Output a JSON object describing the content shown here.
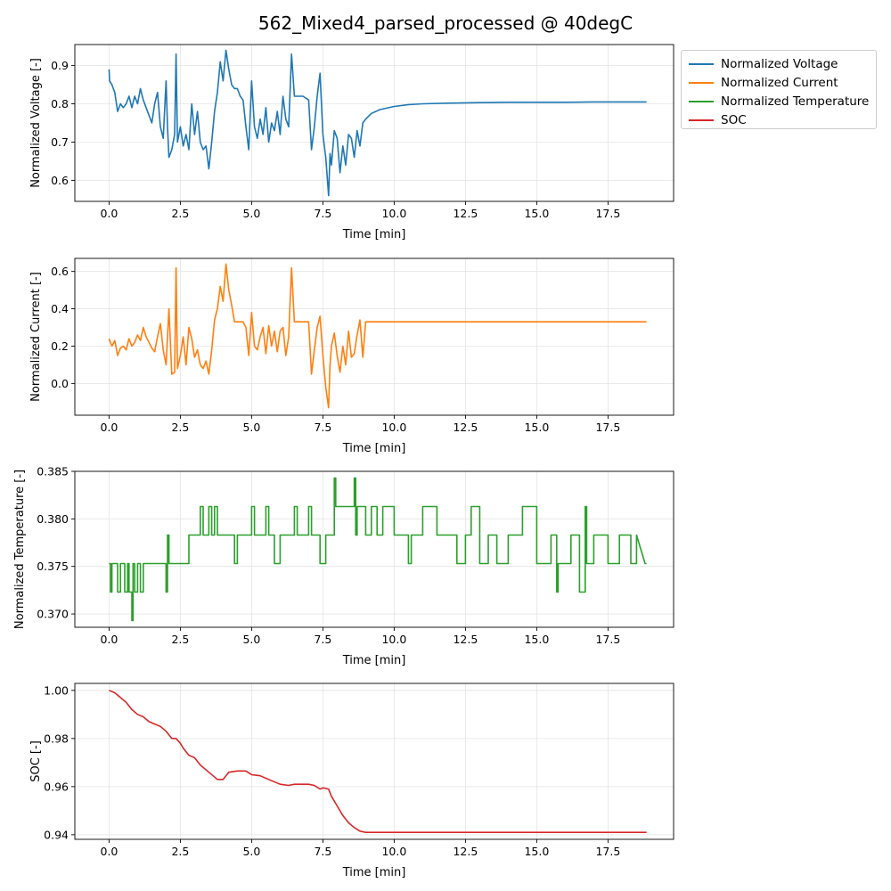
{
  "figure": {
    "title": "562_Mixed4_parsed_processed @ 40degC"
  },
  "chart_data": [
    {
      "type": "line",
      "xlabel": "Time [min]",
      "ylabel": "Normalized Voltage [-]",
      "xlim": [
        -1.2,
        19.8
      ],
      "ylim": [
        0.545,
        0.955
      ],
      "xticks": [
        0.0,
        2.5,
        5.0,
        7.5,
        10.0,
        12.5,
        15.0,
        17.5
      ],
      "xtick_labels": [
        "0.0",
        "2.5",
        "5.0",
        "7.5",
        "10.0",
        "12.5",
        "15.0",
        "17.5"
      ],
      "yticks": [
        0.6,
        0.7,
        0.8,
        0.9
      ],
      "ytick_labels": [
        "0.6",
        "0.7",
        "0.8",
        "0.9"
      ],
      "grid": true,
      "legend": "outside-right",
      "series": [
        {
          "name": "Normalized Voltage",
          "color": "#1f77b4",
          "x": [
            0,
            0.02,
            0.1,
            0.2,
            0.3,
            0.4,
            0.5,
            0.6,
            0.7,
            0.8,
            0.9,
            1.0,
            1.1,
            1.2,
            1.3,
            1.4,
            1.5,
            1.6,
            1.7,
            1.8,
            1.9,
            2.0,
            2.05,
            2.1,
            2.2,
            2.3,
            2.35,
            2.4,
            2.5,
            2.6,
            2.7,
            2.8,
            2.9,
            3.0,
            3.1,
            3.2,
            3.3,
            3.4,
            3.5,
            3.6,
            3.7,
            3.8,
            3.9,
            4.0,
            4.1,
            4.2,
            4.3,
            4.4,
            4.5,
            4.6,
            4.7,
            4.8,
            4.9,
            5.0,
            5.1,
            5.2,
            5.3,
            5.4,
            5.5,
            5.6,
            5.7,
            5.8,
            5.9,
            6.0,
            6.1,
            6.2,
            6.3,
            6.4,
            6.5,
            6.6,
            6.8,
            7.0,
            7.1,
            7.2,
            7.3,
            7.4,
            7.5,
            7.6,
            7.7,
            7.75,
            7.8,
            7.9,
            8.0,
            8.1,
            8.2,
            8.3,
            8.4,
            8.5,
            8.6,
            8.7,
            8.8,
            8.9,
            9.0,
            9.2,
            9.5,
            10.0,
            10.5,
            11.0,
            12.0,
            13.0,
            14.0,
            15.0,
            16.0,
            17.0,
            18.0,
            18.85
          ],
          "y": [
            0.89,
            0.86,
            0.85,
            0.83,
            0.78,
            0.8,
            0.79,
            0.8,
            0.82,
            0.79,
            0.82,
            0.8,
            0.84,
            0.81,
            0.79,
            0.77,
            0.75,
            0.8,
            0.83,
            0.74,
            0.71,
            0.86,
            0.74,
            0.66,
            0.68,
            0.72,
            0.93,
            0.7,
            0.74,
            0.69,
            0.72,
            0.68,
            0.8,
            0.72,
            0.78,
            0.7,
            0.68,
            0.69,
            0.63,
            0.7,
            0.78,
            0.83,
            0.91,
            0.86,
            0.94,
            0.89,
            0.85,
            0.84,
            0.84,
            0.82,
            0.81,
            0.74,
            0.68,
            0.86,
            0.74,
            0.71,
            0.76,
            0.72,
            0.79,
            0.7,
            0.75,
            0.73,
            0.78,
            0.72,
            0.82,
            0.76,
            0.74,
            0.93,
            0.82,
            0.82,
            0.82,
            0.81,
            0.68,
            0.74,
            0.82,
            0.88,
            0.72,
            0.66,
            0.56,
            0.67,
            0.64,
            0.73,
            0.71,
            0.62,
            0.69,
            0.64,
            0.72,
            0.71,
            0.66,
            0.73,
            0.69,
            0.75,
            0.76,
            0.775,
            0.785,
            0.793,
            0.798,
            0.8,
            0.802,
            0.803,
            0.804,
            0.804,
            0.804,
            0.805,
            0.805,
            0.805
          ]
        }
      ]
    },
    {
      "type": "line",
      "xlabel": "Time [min]",
      "ylabel": "Normalized Current [-]",
      "xlim": [
        -1.2,
        19.8
      ],
      "ylim": [
        -0.17,
        0.67
      ],
      "xticks": [
        0.0,
        2.5,
        5.0,
        7.5,
        10.0,
        12.5,
        15.0,
        17.5
      ],
      "xtick_labels": [
        "0.0",
        "2.5",
        "5.0",
        "7.5",
        "10.0",
        "12.5",
        "15.0",
        "17.5"
      ],
      "yticks": [
        0.0,
        0.2,
        0.4,
        0.6
      ],
      "ytick_labels": [
        "0.0",
        "0.2",
        "0.4",
        "0.6"
      ],
      "grid": true,
      "series": [
        {
          "name": "Normalized Current",
          "color": "#ff7f0e",
          "x": [
            0,
            0.1,
            0.2,
            0.3,
            0.4,
            0.5,
            0.6,
            0.7,
            0.8,
            0.9,
            1.0,
            1.1,
            1.2,
            1.3,
            1.4,
            1.5,
            1.6,
            1.7,
            1.8,
            1.9,
            2.0,
            2.1,
            2.2,
            2.3,
            2.35,
            2.4,
            2.5,
            2.6,
            2.7,
            2.8,
            2.9,
            3.0,
            3.1,
            3.2,
            3.3,
            3.4,
            3.5,
            3.6,
            3.7,
            3.8,
            3.9,
            4.0,
            4.1,
            4.2,
            4.3,
            4.4,
            4.5,
            4.6,
            4.7,
            4.8,
            4.9,
            5.0,
            5.1,
            5.2,
            5.3,
            5.4,
            5.5,
            5.6,
            5.7,
            5.8,
            5.9,
            6.0,
            6.1,
            6.2,
            6.3,
            6.4,
            6.5,
            6.6,
            6.8,
            7.0,
            7.1,
            7.2,
            7.3,
            7.4,
            7.5,
            7.6,
            7.7,
            7.75,
            7.8,
            7.9,
            8.0,
            8.1,
            8.2,
            8.3,
            8.4,
            8.5,
            8.6,
            8.7,
            8.8,
            8.9,
            9.0,
            9.5,
            10.0,
            12.0,
            14.0,
            16.0,
            18.0,
            18.85
          ],
          "y": [
            0.24,
            0.2,
            0.23,
            0.15,
            0.19,
            0.2,
            0.18,
            0.24,
            0.2,
            0.22,
            0.26,
            0.23,
            0.3,
            0.25,
            0.22,
            0.19,
            0.17,
            0.25,
            0.32,
            0.18,
            0.1,
            0.4,
            0.05,
            0.06,
            0.62,
            0.08,
            0.15,
            0.25,
            0.1,
            0.3,
            0.24,
            0.14,
            0.18,
            0.1,
            0.08,
            0.12,
            0.05,
            0.18,
            0.34,
            0.4,
            0.52,
            0.44,
            0.64,
            0.5,
            0.42,
            0.33,
            0.33,
            0.33,
            0.33,
            0.3,
            0.15,
            0.38,
            0.2,
            0.18,
            0.25,
            0.3,
            0.16,
            0.31,
            0.2,
            0.28,
            0.17,
            0.28,
            0.3,
            0.15,
            0.25,
            0.62,
            0.33,
            0.33,
            0.33,
            0.33,
            0.05,
            0.18,
            0.3,
            0.36,
            0.15,
            -0.02,
            -0.13,
            0.1,
            0.2,
            0.27,
            0.15,
            0.06,
            0.2,
            0.1,
            0.28,
            0.14,
            0.16,
            0.26,
            0.34,
            0.14,
            0.33,
            0.33,
            0.33,
            0.33,
            0.33,
            0.33,
            0.33,
            0.33
          ]
        }
      ]
    },
    {
      "type": "line",
      "xlabel": "Time [min]",
      "ylabel": "Normalized Temperature [-]",
      "xlim": [
        -1.2,
        19.8
      ],
      "ylim": [
        0.3686,
        0.385
      ],
      "xticks": [
        0.0,
        2.5,
        5.0,
        7.5,
        10.0,
        12.5,
        15.0,
        17.5
      ],
      "xtick_labels": [
        "0.0",
        "2.5",
        "5.0",
        "7.5",
        "10.0",
        "12.5",
        "15.0",
        "17.5"
      ],
      "yticks": [
        0.37,
        0.375,
        0.38,
        0.385
      ],
      "ytick_labels": [
        "0.370",
        "0.375",
        "0.380",
        "0.385"
      ],
      "grid": true,
      "series": [
        {
          "name": "Normalized Temperature",
          "color": "#2ca02c",
          "x": [
            0,
            0.05,
            0.05,
            0.1,
            0.1,
            0.3,
            0.3,
            0.4,
            0.4,
            0.55,
            0.55,
            0.65,
            0.65,
            0.7,
            0.7,
            0.8,
            0.8,
            0.84,
            0.84,
            0.9,
            0.9,
            1.0,
            1.0,
            1.1,
            1.1,
            1.2,
            1.2,
            1.3,
            1.3,
            2.0,
            2.0,
            2.05,
            2.05,
            2.1,
            2.1,
            2.15,
            2.15,
            2.8,
            2.8,
            3.2,
            3.2,
            3.3,
            3.3,
            3.5,
            3.5,
            3.6,
            3.6,
            3.7,
            3.7,
            3.8,
            3.8,
            4.4,
            4.4,
            4.5,
            4.5,
            5.0,
            5.0,
            5.1,
            5.1,
            5.5,
            5.5,
            5.6,
            5.6,
            5.8,
            5.8,
            6.0,
            6.0,
            6.5,
            6.5,
            6.6,
            6.6,
            7.0,
            7.0,
            7.1,
            7.1,
            7.4,
            7.4,
            7.6,
            7.6,
            7.9,
            7.9,
            7.95,
            7.95,
            8.6,
            8.6,
            8.65,
            8.65,
            8.7,
            8.7,
            9.0,
            9.0,
            9.2,
            9.2,
            9.4,
            9.4,
            9.6,
            9.6,
            10.0,
            10.0,
            10.5,
            10.5,
            10.6,
            10.6,
            11.0,
            11.0,
            11.5,
            11.5,
            12.2,
            12.2,
            12.5,
            12.5,
            12.7,
            12.7,
            13.0,
            13.0,
            13.3,
            13.3,
            13.6,
            13.6,
            14.0,
            14.0,
            14.5,
            14.5,
            15.0,
            15.0,
            15.5,
            15.5,
            15.7,
            15.7,
            15.75,
            15.75,
            16.2,
            16.2,
            16.5,
            16.5,
            16.7,
            16.7,
            16.75,
            16.75,
            17.0,
            17.0,
            17.5,
            17.5,
            17.9,
            17.9,
            18.3,
            18.3,
            18.5,
            18.5,
            18.8,
            18.85
          ],
          "y": [
            0.3753,
            0.3753,
            0.3723,
            0.3723,
            0.3753,
            0.3753,
            0.3723,
            0.3723,
            0.3753,
            0.3753,
            0.3723,
            0.3723,
            0.3753,
            0.3753,
            0.3723,
            0.3723,
            0.3693,
            0.3693,
            0.3753,
            0.3753,
            0.3723,
            0.3723,
            0.3753,
            0.3753,
            0.3723,
            0.3723,
            0.3753,
            0.3753,
            0.3753,
            0.3753,
            0.3723,
            0.3723,
            0.3783,
            0.3783,
            0.3753,
            0.3753,
            0.3753,
            0.3753,
            0.3783,
            0.3783,
            0.3813,
            0.3813,
            0.3783,
            0.3783,
            0.3813,
            0.3813,
            0.3783,
            0.3783,
            0.3813,
            0.3813,
            0.3783,
            0.3783,
            0.3753,
            0.3753,
            0.3783,
            0.3783,
            0.3813,
            0.3813,
            0.3783,
            0.3783,
            0.3813,
            0.3813,
            0.3783,
            0.3783,
            0.3753,
            0.3753,
            0.3783,
            0.3783,
            0.3813,
            0.3813,
            0.3783,
            0.3783,
            0.3813,
            0.3813,
            0.3783,
            0.3783,
            0.3753,
            0.3753,
            0.3783,
            0.3783,
            0.3843,
            0.3843,
            0.3813,
            0.3813,
            0.3843,
            0.3843,
            0.3783,
            0.3783,
            0.3813,
            0.3813,
            0.3783,
            0.3783,
            0.3813,
            0.3813,
            0.3783,
            0.3783,
            0.3813,
            0.3813,
            0.3783,
            0.3783,
            0.3753,
            0.3753,
            0.3783,
            0.3783,
            0.3813,
            0.3813,
            0.3783,
            0.3783,
            0.3753,
            0.3753,
            0.3783,
            0.3783,
            0.3813,
            0.3813,
            0.3753,
            0.3753,
            0.3783,
            0.3783,
            0.3753,
            0.3753,
            0.3783,
            0.3783,
            0.3813,
            0.3813,
            0.3753,
            0.3753,
            0.3783,
            0.3783,
            0.3723,
            0.3723,
            0.3753,
            0.3753,
            0.3783,
            0.3783,
            0.3723,
            0.3723,
            0.3813,
            0.3813,
            0.3753,
            0.3753,
            0.3783,
            0.3783,
            0.3753,
            0.3753,
            0.3783,
            0.3783,
            0.3753,
            0.3753,
            0.3783,
            0.3753,
            0.3753
          ]
        }
      ]
    },
    {
      "type": "line",
      "xlabel": "Time [min]",
      "ylabel": "SOC [-]",
      "xlim": [
        -1.2,
        19.8
      ],
      "ylim": [
        0.9381,
        1.0029
      ],
      "xticks": [
        0.0,
        2.5,
        5.0,
        7.5,
        10.0,
        12.5,
        15.0,
        17.5
      ],
      "xtick_labels": [
        "0.0",
        "2.5",
        "5.0",
        "7.5",
        "10.0",
        "12.5",
        "15.0",
        "17.5"
      ],
      "yticks": [
        0.94,
        0.96,
        0.98,
        1.0
      ],
      "ytick_labels": [
        "0.94",
        "0.96",
        "0.98",
        "1.00"
      ],
      "grid": true,
      "series": [
        {
          "name": "SOC",
          "color": "#d62728",
          "x": [
            0,
            0.2,
            0.4,
            0.6,
            0.8,
            1.0,
            1.2,
            1.4,
            1.6,
            1.8,
            2.0,
            2.2,
            2.35,
            2.5,
            2.6,
            2.8,
            3.0,
            3.2,
            3.5,
            3.8,
            4.0,
            4.2,
            4.5,
            4.8,
            5.0,
            5.3,
            5.6,
            6.0,
            6.3,
            6.5,
            6.8,
            7.0,
            7.2,
            7.4,
            7.5,
            7.7,
            7.8,
            8.0,
            8.2,
            8.4,
            8.6,
            8.8,
            9.0,
            10.0,
            12.0,
            15.0,
            18.85
          ],
          "y": [
            1.0,
            0.999,
            0.997,
            0.995,
            0.992,
            0.99,
            0.989,
            0.987,
            0.986,
            0.985,
            0.983,
            0.98,
            0.98,
            0.978,
            0.976,
            0.973,
            0.972,
            0.969,
            0.966,
            0.963,
            0.963,
            0.966,
            0.9665,
            0.9665,
            0.965,
            0.9645,
            0.963,
            0.961,
            0.9605,
            0.961,
            0.961,
            0.961,
            0.9605,
            0.959,
            0.9595,
            0.959,
            0.956,
            0.952,
            0.948,
            0.945,
            0.943,
            0.9415,
            0.941,
            0.941,
            0.941,
            0.941,
            0.941
          ]
        }
      ]
    }
  ]
}
